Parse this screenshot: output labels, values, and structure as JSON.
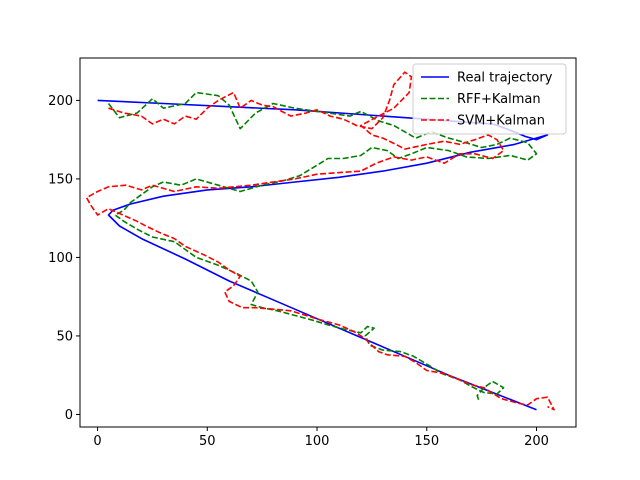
{
  "chart_data": {
    "type": "line",
    "title": "",
    "xlabel": "",
    "ylabel": "",
    "xlim": [
      -8,
      218
    ],
    "ylim": [
      -8,
      227
    ],
    "xticks": [
      0,
      50,
      100,
      150,
      200
    ],
    "yticks": [
      0,
      50,
      100,
      150,
      200
    ],
    "grid": false,
    "legend_position": "top-right",
    "series": [
      {
        "name": "Real trajectory",
        "color": "#0000ff",
        "style": "solid",
        "points": [
          [
            0,
            200
          ],
          [
            30,
            198
          ],
          [
            60,
            196
          ],
          [
            90,
            194
          ],
          [
            120,
            191
          ],
          [
            150,
            188
          ],
          [
            170,
            186
          ],
          [
            180,
            185
          ],
          [
            188,
            181
          ],
          [
            195,
            177
          ],
          [
            200,
            175
          ],
          [
            205,
            178
          ],
          [
            190,
            172
          ],
          [
            170,
            167
          ],
          [
            150,
            160
          ],
          [
            130,
            155
          ],
          [
            110,
            151
          ],
          [
            90,
            148
          ],
          [
            70,
            145
          ],
          [
            50,
            143
          ],
          [
            30,
            139
          ],
          [
            15,
            134
          ],
          [
            7,
            130
          ],
          [
            5,
            127
          ],
          [
            10,
            120
          ],
          [
            20,
            112
          ],
          [
            40,
            99
          ],
          [
            60,
            85
          ],
          [
            80,
            73
          ],
          [
            100,
            61
          ],
          [
            120,
            49
          ],
          [
            140,
            37
          ],
          [
            160,
            25
          ],
          [
            180,
            14
          ],
          [
            200,
            3
          ]
        ]
      },
      {
        "name": "RFF+Kalman",
        "color": "#008000",
        "style": "dashed",
        "points": [
          [
            5,
            198
          ],
          [
            10,
            189
          ],
          [
            18,
            192
          ],
          [
            25,
            201
          ],
          [
            30,
            195
          ],
          [
            40,
            198
          ],
          [
            45,
            205
          ],
          [
            55,
            203
          ],
          [
            60,
            197
          ],
          [
            65,
            182
          ],
          [
            72,
            192
          ],
          [
            80,
            198
          ],
          [
            90,
            195
          ],
          [
            100,
            193
          ],
          [
            110,
            191
          ],
          [
            115,
            190
          ],
          [
            120,
            193
          ],
          [
            128,
            187
          ],
          [
            135,
            184
          ],
          [
            140,
            180
          ],
          [
            145,
            176
          ],
          [
            152,
            180
          ],
          [
            160,
            176
          ],
          [
            168,
            173
          ],
          [
            175,
            170
          ],
          [
            182,
            172
          ],
          [
            188,
            176
          ],
          [
            196,
            173
          ],
          [
            200,
            166
          ],
          [
            196,
            162
          ],
          [
            188,
            165
          ],
          [
            178,
            163
          ],
          [
            168,
            164
          ],
          [
            160,
            168
          ],
          [
            150,
            170
          ],
          [
            143,
            166
          ],
          [
            137,
            163
          ],
          [
            132,
            168
          ],
          [
            125,
            170
          ],
          [
            120,
            165
          ],
          [
            112,
            163
          ],
          [
            105,
            163
          ],
          [
            98,
            157
          ],
          [
            92,
            152
          ],
          [
            85,
            149
          ],
          [
            75,
            146
          ],
          [
            65,
            142
          ],
          [
            55,
            146
          ],
          [
            45,
            150
          ],
          [
            38,
            146
          ],
          [
            30,
            148
          ],
          [
            25,
            145
          ],
          [
            20,
            140
          ],
          [
            15,
            135
          ],
          [
            12,
            130
          ],
          [
            8,
            127
          ],
          [
            12,
            123
          ],
          [
            18,
            118
          ],
          [
            25,
            113
          ],
          [
            35,
            110
          ],
          [
            45,
            100
          ],
          [
            55,
            95
          ],
          [
            63,
            90
          ],
          [
            70,
            85
          ],
          [
            73,
            78
          ],
          [
            70,
            70
          ],
          [
            75,
            68
          ],
          [
            82,
            66
          ],
          [
            90,
            63
          ],
          [
            98,
            60
          ],
          [
            105,
            57
          ],
          [
            113,
            54
          ],
          [
            120,
            52
          ],
          [
            123,
            56
          ],
          [
            126,
            55
          ],
          [
            122,
            50
          ],
          [
            124,
            44
          ],
          [
            130,
            41
          ],
          [
            138,
            40
          ],
          [
            144,
            37
          ],
          [
            150,
            32
          ],
          [
            157,
            26
          ],
          [
            165,
            22
          ],
          [
            170,
            18
          ],
          [
            176,
            14
          ],
          [
            182,
            13
          ],
          [
            185,
            17
          ],
          [
            180,
            21
          ],
          [
            176,
            17
          ],
          [
            173,
            12
          ],
          [
            174,
            8
          ]
        ]
      },
      {
        "name": "SVM+Kalman",
        "color": "#ff0000",
        "style": "dashed",
        "points": [
          [
            5,
            195
          ],
          [
            12,
            192
          ],
          [
            20,
            190
          ],
          [
            25,
            185
          ],
          [
            30,
            188
          ],
          [
            35,
            185
          ],
          [
            40,
            190
          ],
          [
            45,
            188
          ],
          [
            50,
            195
          ],
          [
            55,
            200
          ],
          [
            62,
            205
          ],
          [
            65,
            195
          ],
          [
            70,
            200
          ],
          [
            75,
            197
          ],
          [
            80,
            196
          ],
          [
            88,
            190
          ],
          [
            95,
            192
          ],
          [
            100,
            194
          ],
          [
            106,
            190
          ],
          [
            112,
            188
          ],
          [
            118,
            184
          ],
          [
            125,
            182
          ],
          [
            130,
            189
          ],
          [
            133,
            200
          ],
          [
            135,
            210
          ],
          [
            140,
            218
          ],
          [
            143,
            215
          ],
          [
            142,
            205
          ],
          [
            135,
            195
          ],
          [
            128,
            190
          ],
          [
            120,
            184
          ],
          [
            125,
            178
          ],
          [
            130,
            176
          ],
          [
            136,
            172
          ],
          [
            140,
            169
          ],
          [
            150,
            172
          ],
          [
            158,
            174
          ],
          [
            165,
            172
          ],
          [
            172,
            175
          ],
          [
            178,
            178
          ],
          [
            182,
            175
          ],
          [
            185,
            168
          ],
          [
            180,
            163
          ],
          [
            172,
            166
          ],
          [
            165,
            166
          ],
          [
            158,
            160
          ],
          [
            150,
            164
          ],
          [
            143,
            162
          ],
          [
            135,
            164
          ],
          [
            127,
            160
          ],
          [
            120,
            155
          ],
          [
            110,
            154
          ],
          [
            100,
            153
          ],
          [
            90,
            150
          ],
          [
            80,
            148
          ],
          [
            70,
            146
          ],
          [
            55,
            144
          ],
          [
            45,
            145
          ],
          [
            35,
            142
          ],
          [
            25,
            146
          ],
          [
            20,
            143
          ],
          [
            13,
            146
          ],
          [
            5,
            145
          ],
          [
            0,
            142
          ],
          [
            -5,
            138
          ],
          [
            -3,
            133
          ],
          [
            0,
            127
          ],
          [
            5,
            131
          ],
          [
            10,
            128
          ],
          [
            18,
            123
          ],
          [
            22,
            120
          ],
          [
            28,
            116
          ],
          [
            35,
            112
          ],
          [
            40,
            107
          ],
          [
            48,
            102
          ],
          [
            55,
            97
          ],
          [
            60,
            92
          ],
          [
            65,
            88
          ],
          [
            62,
            82
          ],
          [
            58,
            78
          ],
          [
            60,
            72
          ],
          [
            66,
            68
          ],
          [
            72,
            68
          ],
          [
            80,
            67
          ],
          [
            88,
            66
          ],
          [
            95,
            63
          ],
          [
            102,
            60
          ],
          [
            110,
            57
          ],
          [
            118,
            52
          ],
          [
            122,
            48
          ],
          [
            125,
            44
          ],
          [
            128,
            40
          ],
          [
            132,
            38
          ],
          [
            140,
            37
          ],
          [
            145,
            33
          ],
          [
            150,
            28
          ],
          [
            158,
            26
          ],
          [
            165,
            22
          ],
          [
            170,
            19
          ],
          [
            176,
            17
          ],
          [
            184,
            10
          ],
          [
            192,
            7
          ],
          [
            196,
            6
          ],
          [
            200,
            10
          ],
          [
            205,
            11
          ],
          [
            208,
            3
          ],
          [
            205,
            5
          ]
        ]
      }
    ]
  }
}
